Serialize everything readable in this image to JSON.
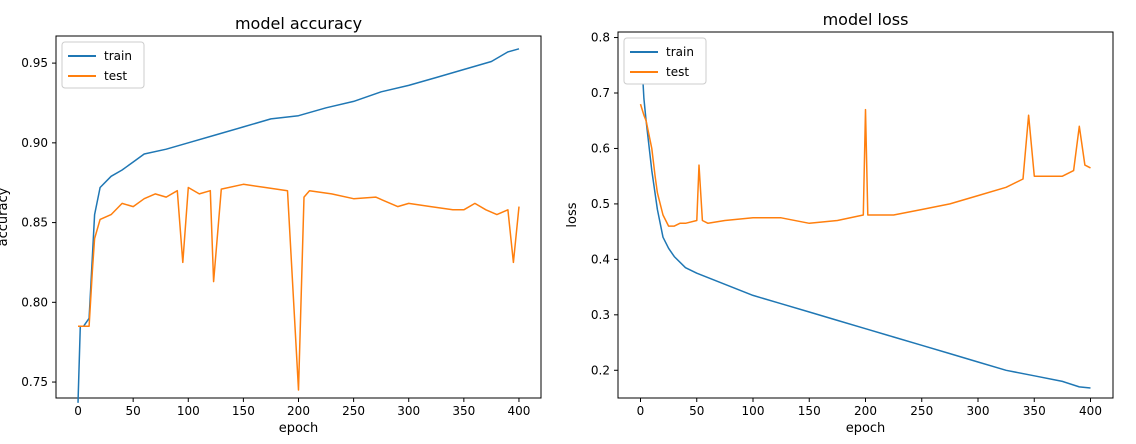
{
  "chart_data": [
    {
      "type": "line",
      "title": "model accuracy",
      "xlabel": "epoch",
      "ylabel": "accuracy",
      "xlim": [
        -20,
        420
      ],
      "ylim": [
        0.74,
        0.967
      ],
      "xticks": [
        0,
        50,
        100,
        150,
        200,
        250,
        300,
        350,
        400
      ],
      "yticks": [
        0.75,
        0.8,
        0.85,
        0.9,
        0.95
      ],
      "legend_position": "top-left",
      "grid": false,
      "series": [
        {
          "name": "train",
          "color": "#1f77b4",
          "x": [
            0,
            2,
            5,
            10,
            15,
            20,
            30,
            40,
            50,
            60,
            80,
            100,
            125,
            150,
            175,
            200,
            225,
            250,
            275,
            300,
            325,
            350,
            375,
            390,
            400
          ],
          "y": [
            0.737,
            0.785,
            0.785,
            0.79,
            0.855,
            0.872,
            0.879,
            0.883,
            0.888,
            0.893,
            0.896,
            0.9,
            0.905,
            0.91,
            0.915,
            0.917,
            0.922,
            0.926,
            0.932,
            0.936,
            0.941,
            0.946,
            0.951,
            0.957,
            0.959
          ]
        },
        {
          "name": "test",
          "color": "#ff7f0e",
          "x": [
            0,
            5,
            10,
            13,
            15,
            20,
            30,
            40,
            50,
            60,
            70,
            80,
            90,
            95,
            100,
            110,
            120,
            123,
            130,
            150,
            170,
            190,
            200,
            205,
            210,
            230,
            250,
            270,
            290,
            300,
            320,
            340,
            350,
            360,
            370,
            380,
            390,
            395,
            400
          ],
          "y": [
            0.785,
            0.785,
            0.785,
            0.82,
            0.84,
            0.852,
            0.855,
            0.862,
            0.86,
            0.865,
            0.868,
            0.866,
            0.87,
            0.825,
            0.872,
            0.868,
            0.87,
            0.813,
            0.871,
            0.874,
            0.872,
            0.87,
            0.745,
            0.866,
            0.87,
            0.868,
            0.865,
            0.866,
            0.86,
            0.862,
            0.86,
            0.858,
            0.858,
            0.862,
            0.858,
            0.855,
            0.858,
            0.825,
            0.86
          ]
        }
      ]
    },
    {
      "type": "line",
      "title": "model loss",
      "xlabel": "epoch",
      "ylabel": "loss",
      "xlim": [
        -20,
        420
      ],
      "ylim": [
        0.15,
        0.81
      ],
      "xticks": [
        0,
        50,
        100,
        150,
        200,
        250,
        300,
        350,
        400
      ],
      "yticks": [
        0.2,
        0.3,
        0.4,
        0.5,
        0.6,
        0.7,
        0.8
      ],
      "legend_position": "top-left",
      "grid": false,
      "series": [
        {
          "name": "train",
          "color": "#1f77b4",
          "x": [
            0,
            3,
            5,
            10,
            15,
            20,
            25,
            30,
            40,
            50,
            75,
            100,
            125,
            150,
            175,
            200,
            225,
            250,
            275,
            300,
            325,
            350,
            375,
            390,
            400
          ],
          "y": [
            0.8,
            0.69,
            0.65,
            0.56,
            0.49,
            0.44,
            0.42,
            0.405,
            0.385,
            0.375,
            0.355,
            0.335,
            0.32,
            0.305,
            0.29,
            0.275,
            0.26,
            0.245,
            0.23,
            0.215,
            0.2,
            0.19,
            0.18,
            0.17,
            0.168
          ]
        },
        {
          "name": "test",
          "color": "#ff7f0e",
          "x": [
            0,
            3,
            5,
            10,
            13,
            15,
            20,
            25,
            30,
            35,
            40,
            50,
            52,
            55,
            60,
            75,
            100,
            125,
            150,
            175,
            198,
            200,
            202,
            225,
            250,
            275,
            300,
            325,
            340,
            345,
            350,
            375,
            385,
            390,
            395,
            400
          ],
          "y": [
            0.68,
            0.66,
            0.65,
            0.6,
            0.55,
            0.52,
            0.48,
            0.46,
            0.46,
            0.465,
            0.465,
            0.47,
            0.57,
            0.47,
            0.465,
            0.47,
            0.475,
            0.475,
            0.465,
            0.47,
            0.48,
            0.67,
            0.48,
            0.48,
            0.49,
            0.5,
            0.515,
            0.53,
            0.545,
            0.66,
            0.55,
            0.55,
            0.56,
            0.64,
            0.57,
            0.565
          ]
        }
      ]
    }
  ]
}
